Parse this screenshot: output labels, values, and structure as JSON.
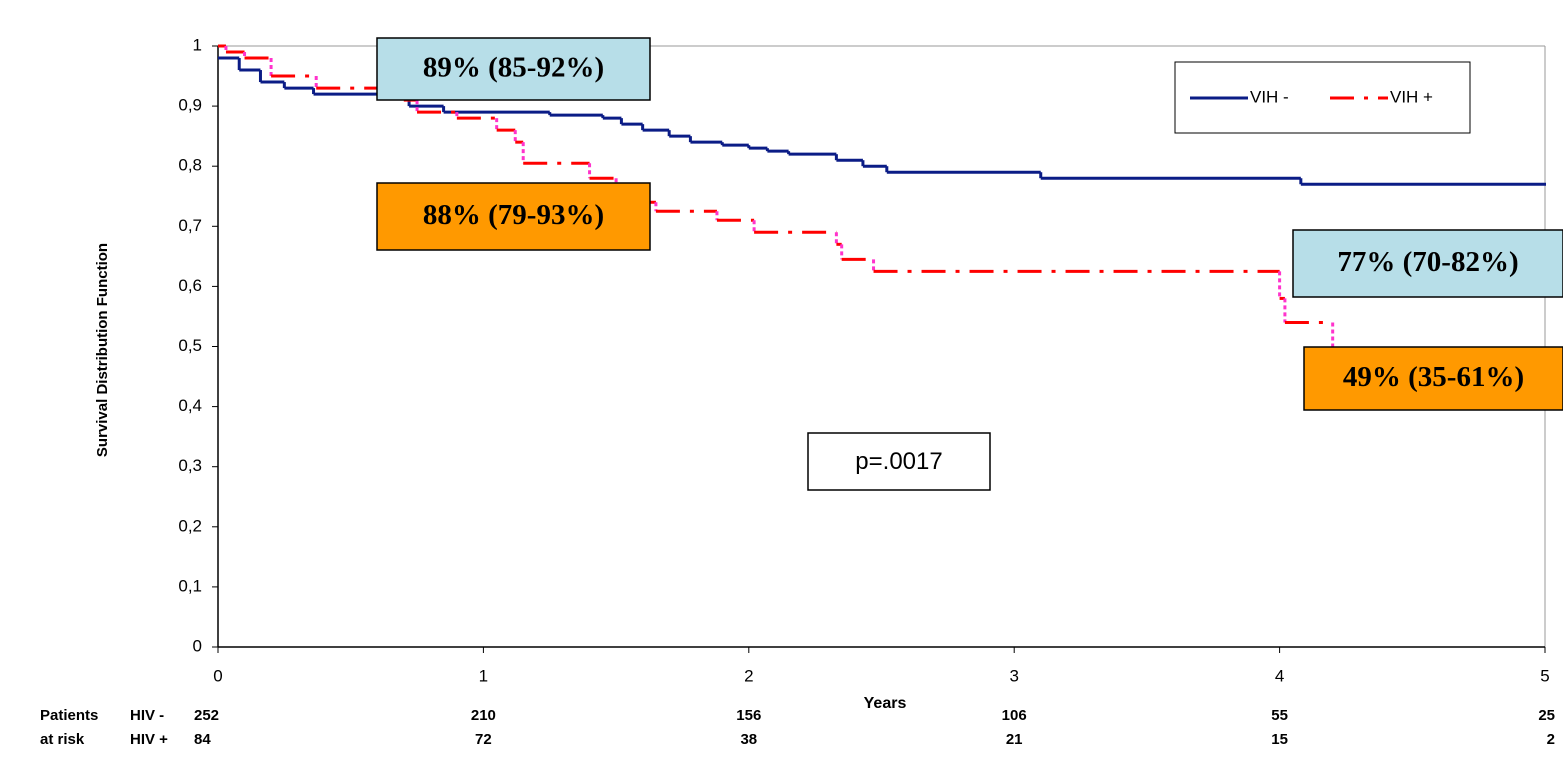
{
  "chart_data": {
    "type": "line",
    "step": "post",
    "ylabel": "Survival  Distribution Function",
    "xlabel": "Years",
    "xlim": [
      0,
      5
    ],
    "ylim": [
      0,
      1
    ],
    "xticks": [
      0,
      1,
      2,
      3,
      4,
      5
    ],
    "yticks": [
      0,
      {
        "value": 0.1,
        "label": "0,1"
      },
      {
        "value": 0.2,
        "label": "0,2"
      },
      {
        "value": 0.3,
        "label": "0,3"
      },
      {
        "value": 0.4,
        "label": "0,4"
      },
      {
        "value": 0.5,
        "label": "0,5"
      },
      {
        "value": 0.6,
        "label": "0,6"
      },
      {
        "value": 0.7,
        "label": "0,7"
      },
      {
        "value": 0.8,
        "label": "0,8"
      },
      {
        "value": 0.9,
        "label": "0,9"
      },
      1
    ],
    "legend": "top-right",
    "series": [
      {
        "name": "VIH -",
        "color": "#0b1c86",
        "dash": false,
        "x": [
          0,
          0.08,
          0.16,
          0.25,
          0.36,
          0.72,
          0.85,
          1.25,
          1.45,
          1.52,
          1.6,
          1.7,
          1.78,
          1.9,
          2.0,
          2.07,
          2.15,
          2.33,
          2.43,
          2.52,
          3.1,
          4.08,
          5
        ],
        "values": [
          0.98,
          0.96,
          0.94,
          0.93,
          0.92,
          0.9,
          0.89,
          0.885,
          0.88,
          0.87,
          0.86,
          0.85,
          0.84,
          0.835,
          0.83,
          0.825,
          0.82,
          0.81,
          0.8,
          0.79,
          0.78,
          0.77,
          0.77
        ]
      },
      {
        "name": "VIH +",
        "color": "#ff0000",
        "dash": true,
        "x": [
          0,
          0.03,
          0.1,
          0.2,
          0.37,
          0.7,
          0.75,
          0.9,
          1.05,
          1.12,
          1.15,
          1.4,
          1.5,
          1.6,
          1.65,
          1.88,
          2.02,
          2.33,
          2.35,
          2.47,
          4.0,
          4.02,
          4.2,
          5
        ],
        "values": [
          1,
          0.99,
          0.98,
          0.95,
          0.93,
          0.91,
          0.89,
          0.88,
          0.86,
          0.84,
          0.805,
          0.78,
          0.76,
          0.74,
          0.725,
          0.71,
          0.69,
          0.67,
          0.645,
          0.625,
          0.58,
          0.54,
          0.49,
          0.49
        ]
      }
    ],
    "annotations": [
      {
        "text": "89% (85-92%)",
        "fill": "#b7dee8"
      },
      {
        "text": "88% (79-93%)",
        "fill": "#ff9900"
      },
      {
        "text": "77% (70-82%)",
        "fill": "#b7dee8"
      },
      {
        "text": "49% (35-61%)",
        "fill": "#ff9900"
      },
      {
        "text": "p=.0017",
        "fill": "#ffffff"
      }
    ],
    "risk_table": {
      "title": [
        "Patients",
        "at risk"
      ],
      "rows": [
        {
          "name": "HIV -",
          "counts": [
            252,
            210,
            156,
            106,
            55,
            25
          ]
        },
        {
          "name": "HIV +",
          "counts": [
            84,
            72,
            38,
            21,
            15,
            2
          ]
        }
      ]
    }
  }
}
